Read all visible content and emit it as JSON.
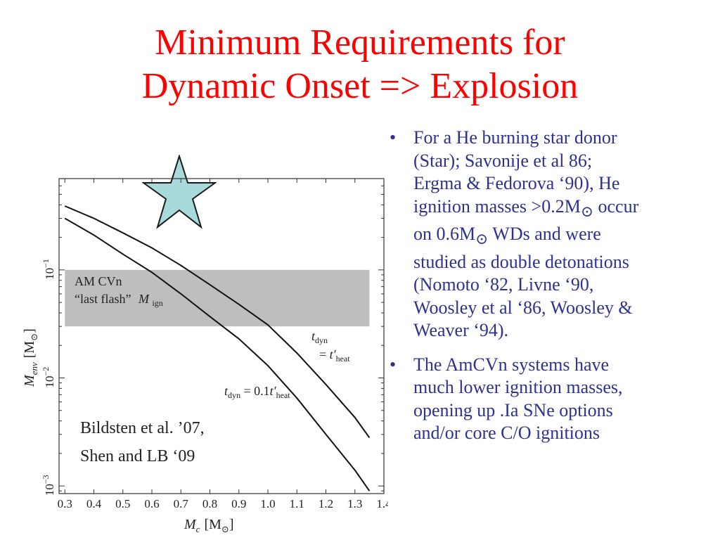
{
  "slide": {
    "title_line1": "Minimum Requirements for",
    "title_line2": "Dynamic Onset => Explosion",
    "bullet1_line1": "For a He burning star donor",
    "bullet1_line2": "(Star); Savonije et al 86;",
    "bullet1_line3": "Ergma & Fedorova ‘90), He",
    "bullet1_line4": "ignition masses >0.2M",
    "bullet1_line4_sym": "⊙",
    "bullet1_line4_end": " occur",
    "bullet1_line5": "on 0.6M",
    "bullet1_line5_sym": "⊙",
    "bullet1_line5_end": " WDs and were",
    "bullet1_line6": "studied as double detonations",
    "bullet1_line7": "(Nomoto ‘82, Livne ‘90,",
    "bullet1_line8": "Woosley et al ‘86, Woosley &",
    "bullet1_line9": "Weaver ‘94).",
    "bullet2_line1": "The AmCVn systems have",
    "bullet2_line2": "much lower ignition masses,",
    "bullet2_line3": "opening up .Ia SNe options",
    "bullet2_line4": "and/or core C/O ignitions",
    "bullet_marker": "•",
    "citation_line1": "Bildsten et al. ’07,",
    "citation_line2": "Shen and LB ‘09",
    "colors": {
      "title": "#ff0000",
      "bullets": "#2e3192",
      "star_fill": "#a8dadc",
      "band": "#bebebe"
    },
    "icons": [
      "star-icon"
    ]
  },
  "chart_data": {
    "type": "line",
    "x_scale": "linear",
    "y_scale": "log",
    "xlim": [
      0.28,
      1.4
    ],
    "ylim": [
      0.00085,
      0.7
    ],
    "xlabel_base": "M",
    "xlabel_sub": "c",
    "xlabel_unit": "[M",
    "xlabel_unit_sym": "⊙",
    "xlabel_close": "]",
    "ylabel_base": "M",
    "ylabel_sub": "env",
    "ylabel_unit": "[M",
    "ylabel_unit_sym": "⊙",
    "ylabel_close": "]",
    "x_ticks": [
      {
        "value": 0.3,
        "label": "0.3"
      },
      {
        "value": 0.4,
        "label": "0.4"
      },
      {
        "value": 0.5,
        "label": "0.5"
      },
      {
        "value": 0.6,
        "label": "0.6"
      },
      {
        "value": 0.7,
        "label": "0.7"
      },
      {
        "value": 0.8,
        "label": "0.8"
      },
      {
        "value": 0.9,
        "label": "0.9"
      },
      {
        "value": 1.0,
        "label": "1.0"
      },
      {
        "value": 1.1,
        "label": "1.1"
      },
      {
        "value": 1.2,
        "label": "1.2"
      },
      {
        "value": 1.3,
        "label": "1.3"
      },
      {
        "value": 1.4,
        "label": "1.4"
      }
    ],
    "y_ticks": [
      {
        "value": 0.001,
        "label_base": "10",
        "label_exp": "−3"
      },
      {
        "value": 0.01,
        "label_base": "10",
        "label_exp": "−2"
      },
      {
        "value": 0.1,
        "label_base": "10",
        "label_exp": "−1"
      }
    ],
    "band": {
      "x": [
        0.3,
        1.35
      ],
      "y": [
        0.03,
        0.1
      ],
      "label_line1": "AM CVn",
      "label_line2": "“last flash”",
      "label_var": "M",
      "label_var_sub": "ign"
    },
    "series": [
      {
        "name": "t_dyn = t′_heat",
        "label_lines": [
          "t_dyn",
          "= t′_heat"
        ],
        "x": [
          0.3,
          0.4,
          0.5,
          0.6,
          0.7,
          0.8,
          0.9,
          1.0,
          1.1,
          1.2,
          1.3,
          1.35
        ],
        "y": [
          0.39,
          0.3,
          0.22,
          0.16,
          0.11,
          0.073,
          0.048,
          0.031,
          0.017,
          0.0087,
          0.0043,
          0.0028
        ]
      },
      {
        "name": "t_dyn = 0.1t′_heat",
        "label_lines": [
          "t_dyn = 0.1t′_heat"
        ],
        "x": [
          0.3,
          0.4,
          0.5,
          0.6,
          0.7,
          0.8,
          0.9,
          1.0,
          1.1,
          1.2,
          1.3,
          1.35
        ],
        "y": [
          0.3,
          0.21,
          0.14,
          0.095,
          0.06,
          0.037,
          0.023,
          0.013,
          0.0065,
          0.003,
          0.0014,
          0.0009
        ]
      }
    ]
  }
}
